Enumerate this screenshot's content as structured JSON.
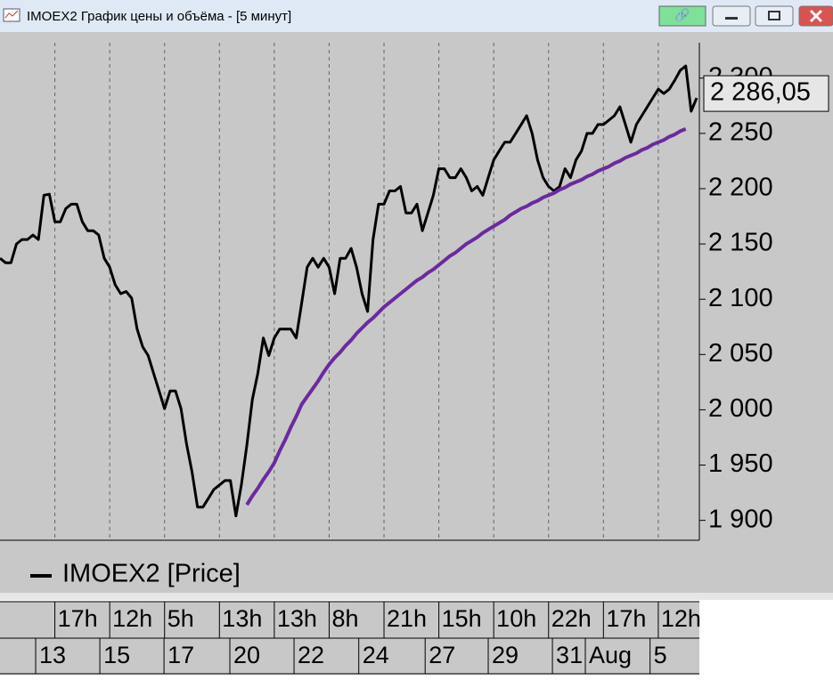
{
  "window": {
    "title": "IMOEX2 График цены и объёма - [5 минут]"
  },
  "chart_data": {
    "type": "line",
    "series": [
      {
        "name": "IMOEX2 [Price]",
        "color": "#000000",
        "values": [
          2137,
          2133,
          2133,
          2150,
          2154,
          2154,
          2158,
          2154,
          2194,
          2195,
          2170,
          2170,
          2182,
          2186,
          2186,
          2170,
          2162,
          2162,
          2158,
          2137,
          2129,
          2113,
          2105,
          2107,
          2101,
          2073,
          2057,
          2049,
          2033,
          2017,
          2001,
          2017,
          2017,
          2001,
          1969,
          1944,
          1912,
          1912,
          1920,
          1928,
          1932,
          1936,
          1936,
          1904,
          1932,
          1968,
          2009,
          2033,
          2065,
          2049,
          2065,
          2073,
          2073,
          2073,
          2065,
          2097,
          2129,
          2137,
          2129,
          2137,
          2129,
          2105,
          2137,
          2137,
          2146,
          2129,
          2105,
          2089,
          2154,
          2186,
          2186,
          2198,
          2198,
          2202,
          2178,
          2178,
          2186,
          2162,
          2178,
          2194,
          2218,
          2218,
          2210,
          2210,
          2218,
          2210,
          2198,
          2202,
          2194,
          2210,
          2226,
          2234,
          2242,
          2242,
          2250,
          2258,
          2266,
          2250,
          2226,
          2210,
          2202,
          2198,
          2202,
          2218,
          2210,
          2226,
          2234,
          2250,
          2250,
          2258,
          2258,
          2262,
          2266,
          2274,
          2258,
          2242,
          2258,
          2266,
          2274,
          2282,
          2290,
          2286,
          2290,
          2298,
          2307,
          2311,
          2270,
          2282
        ]
      },
      {
        "color": "#6b2a9e",
        "values": [
          null,
          null,
          null,
          null,
          null,
          null,
          null,
          null,
          null,
          null,
          null,
          null,
          null,
          null,
          null,
          null,
          null,
          null,
          null,
          null,
          null,
          null,
          null,
          null,
          null,
          null,
          null,
          null,
          null,
          null,
          null,
          null,
          null,
          null,
          null,
          null,
          null,
          null,
          null,
          null,
          null,
          null,
          null,
          null,
          null,
          1914,
          1922,
          1929,
          1937,
          1944,
          1952,
          1963,
          1973,
          1984,
          1994,
          2005,
          2012,
          2019,
          2026,
          2034,
          2041,
          2047,
          2052,
          2058,
          2063,
          2069,
          2074,
          2079,
          2083,
          2088,
          2093,
          2097,
          2101,
          2105,
          2109,
          2113,
          2117,
          2120,
          2124,
          2127,
          2131,
          2135,
          2139,
          2142,
          2146,
          2150,
          2153,
          2156,
          2160,
          2163,
          2166,
          2169,
          2172,
          2176,
          2179,
          2182,
          2184,
          2187,
          2189,
          2192,
          2194,
          2196,
          2199,
          2201,
          2204,
          2206,
          2208,
          2211,
          2213,
          2216,
          2218,
          2220,
          2223,
          2225,
          2228,
          2230,
          2232,
          2235,
          2237,
          2240,
          2242,
          2244,
          2247,
          2249,
          2252,
          2254,
          null,
          null
        ]
      }
    ],
    "xlim": [
      0,
      127
    ],
    "xticks": [
      {
        "value": 10,
        "label": "17h"
      },
      {
        "value": 20,
        "label": "12h"
      },
      {
        "value": 30,
        "label": "5h"
      },
      {
        "value": 40,
        "label": "13h"
      },
      {
        "value": 50,
        "label": "13h"
      },
      {
        "value": 60,
        "label": "8h"
      },
      {
        "value": 70,
        "label": "21h"
      },
      {
        "value": 80,
        "label": "15h"
      },
      {
        "value": 90,
        "label": "10h"
      },
      {
        "value": 100,
        "label": "22h"
      },
      {
        "value": 110,
        "label": "17h"
      },
      {
        "value": 120,
        "label": "12h"
      }
    ],
    "date_ticks": [
      {
        "value": 6.5,
        "label": "13"
      },
      {
        "value": 18.2,
        "label": "15"
      },
      {
        "value": 29.9,
        "label": "17"
      },
      {
        "value": 41.9,
        "label": "20"
      },
      {
        "value": 53.6,
        "label": "22"
      },
      {
        "value": 65.4,
        "label": "24"
      },
      {
        "value": 77.5,
        "label": "27"
      },
      {
        "value": 89,
        "label": "29"
      },
      {
        "value": 100.7,
        "label": "31"
      },
      {
        "value": 106.7,
        "label": "Aug"
      },
      {
        "value": 118.5,
        "label": "5"
      }
    ],
    "ylim": [
      1882,
      2332
    ],
    "yticks": [
      {
        "value": 1900,
        "label": "1 900"
      },
      {
        "value": 1950,
        "label": "1 950"
      },
      {
        "value": 2000,
        "label": "2 000"
      },
      {
        "value": 2050,
        "label": "2 050"
      },
      {
        "value": 2100,
        "label": "2 100"
      },
      {
        "value": 2150,
        "label": "2 150"
      },
      {
        "value": 2200,
        "label": "2 200"
      },
      {
        "value": 2250,
        "label": "2 250"
      },
      {
        "value": 2300,
        "label": "2 300"
      }
    ],
    "last_value": {
      "value": 2286.05,
      "label": "2 286,05"
    },
    "grid": true
  }
}
